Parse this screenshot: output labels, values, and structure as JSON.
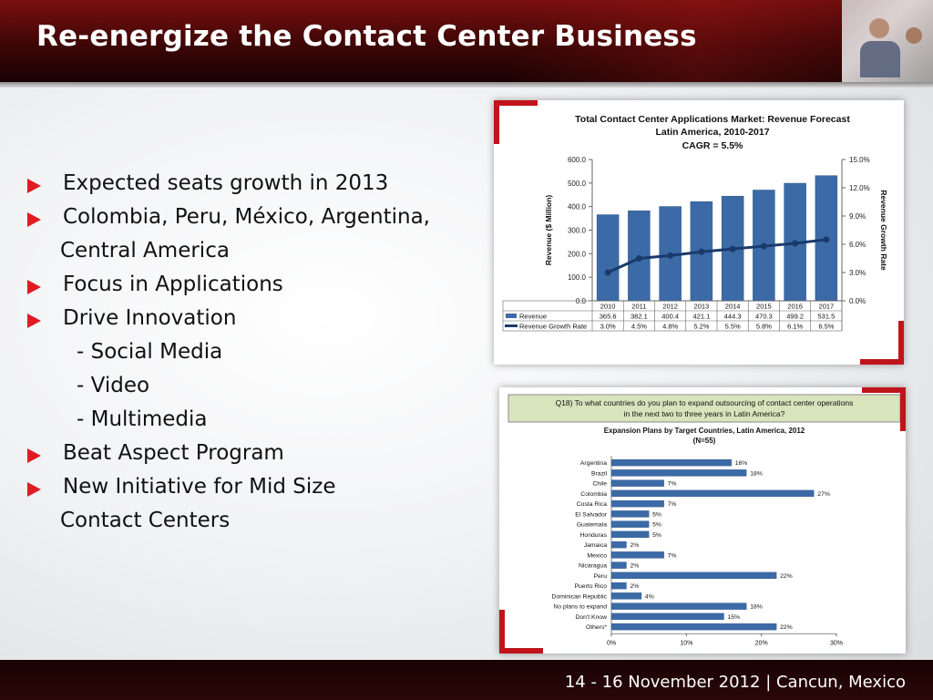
{
  "header": {
    "title": "Re-energize the Contact Center Business"
  },
  "bullets": [
    {
      "kind": "main",
      "text": "Expected seats growth in 2013"
    },
    {
      "kind": "main",
      "text": "Colombia, Peru, México, Argentina,"
    },
    {
      "kind": "cont",
      "text": "Central America"
    },
    {
      "kind": "main",
      "text": "Focus in Applications"
    },
    {
      "kind": "main",
      "text": "Drive Innovation"
    },
    {
      "kind": "sub",
      "text": "- Social Media"
    },
    {
      "kind": "sub",
      "text": "- Video"
    },
    {
      "kind": "sub",
      "text": "- Multimedia"
    },
    {
      "kind": "main",
      "text": "Beat Aspect Program"
    },
    {
      "kind": "main",
      "text": "New Initiative for Mid Size"
    },
    {
      "kind": "cont",
      "text": "Contact Centers"
    }
  ],
  "footer": {
    "text": "14 - 16 November 2012  |  Cancun, Mexico"
  },
  "colors": {
    "accent_red": "#e01b22",
    "header_dark": "#3d0606",
    "bar_blue": "#3b6aa6",
    "line_navy": "#1a3a6b"
  },
  "chart_data": [
    {
      "type": "bar",
      "title": "Total Contact Center Applications Market: Revenue Forecast",
      "subtitle": "Latin America, 2010-2017",
      "cagr": "CAGR = 5.5%",
      "categories": [
        "2010",
        "2011",
        "2012",
        "2013",
        "2014",
        "2015",
        "2016",
        "2017"
      ],
      "ylabel": "Revenue ($ Million)",
      "y2label": "Revenue Growth Rate",
      "ylim": [
        0,
        600
      ],
      "y2lim": [
        0,
        15
      ],
      "yticks": [
        "600.0",
        "500.0",
        "400.0",
        "300.0",
        "200.0",
        "100.0",
        "0.0"
      ],
      "y2ticks": [
        "15.0%",
        "12.0%",
        "9.0%",
        "6.0%",
        "3.0%",
        "0.0%"
      ],
      "series": [
        {
          "name": "Revenue",
          "values": [
            365.6,
            382.1,
            400.4,
            421.1,
            444.3,
            470.3,
            499.2,
            531.5
          ],
          "labels": [
            "365.6",
            "382.1",
            "400.4",
            "421.1",
            "444.3",
            "470.3",
            "499.2",
            "531.5"
          ]
        },
        {
          "name": "Revenue Growth Rate",
          "values": [
            3.0,
            4.5,
            4.8,
            5.2,
            5.5,
            5.8,
            6.1,
            6.5
          ],
          "labels": [
            "3.0%",
            "4.5%",
            "4.8%",
            "5.2%",
            "5.5%",
            "5.8%",
            "6.1%",
            "6.5%"
          ]
        }
      ]
    },
    {
      "type": "bar",
      "question": "Q18) To what countries do you plan to expand outsourcing of contact center operations in the next two to three years in Latin America?",
      "title": "Expansion Plans by Target Countries, Latin America, 2012",
      "subtitle": "(N=55)",
      "categories": [
        "Argentina",
        "Brazil",
        "Chile",
        "Colombia",
        "Costa Rica",
        "El Salvador",
        "Guatemala",
        "Honduras",
        "Jamaica",
        "Mexico",
        "Nicaragua",
        "Peru",
        "Puerto Rico",
        "Dominican Republic",
        "No plans to expand",
        "Don't Know",
        "Others*"
      ],
      "values": [
        16,
        18,
        7,
        27,
        7,
        5,
        5,
        5,
        2,
        7,
        2,
        22,
        2,
        4,
        18,
        15,
        22
      ],
      "labels": [
        "16%",
        "18%",
        "7%",
        "27%",
        "7%",
        "5%",
        "5%",
        "5%",
        "2%",
        "7%",
        "2%",
        "22%",
        "2%",
        "4%",
        "18%",
        "15%",
        "22%"
      ],
      "xlim": [
        0,
        30
      ],
      "xticks": [
        "0%",
        "10%",
        "20%",
        "30%"
      ]
    }
  ]
}
